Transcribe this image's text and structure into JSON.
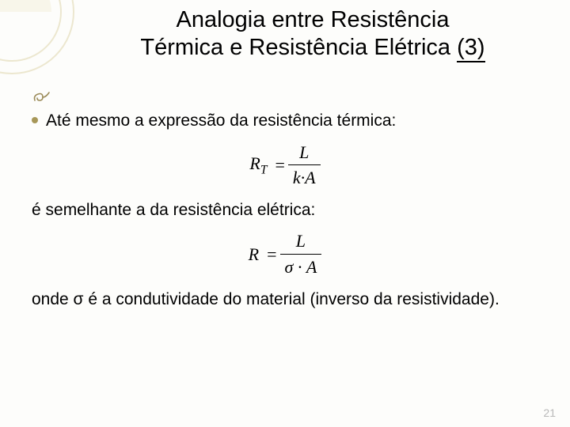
{
  "title_line1": "Analogia entre Resistência",
  "title_line2_a": "Térmica e Resistência Elétrica ",
  "title_line2_b": "(3)",
  "bullet1_text": "Até mesmo a expressão da resistência térmica:",
  "formula1": {
    "left": "R",
    "left_sub": "T",
    "num": "L",
    "den": "k·A"
  },
  "line2": "é semelhante a da resistência elétrica:",
  "formula2": {
    "left": "R",
    "num": "L",
    "den": "σ · A"
  },
  "line3": "onde σ é a condutividade do material (inverso da resistividade).",
  "page_number": "21",
  "colors": {
    "accent": "#a79758",
    "deco_stroke": "#e8e3c8",
    "text": "#000000",
    "background": "#fdfdfb",
    "pagenum": "#b9b9b9"
  }
}
